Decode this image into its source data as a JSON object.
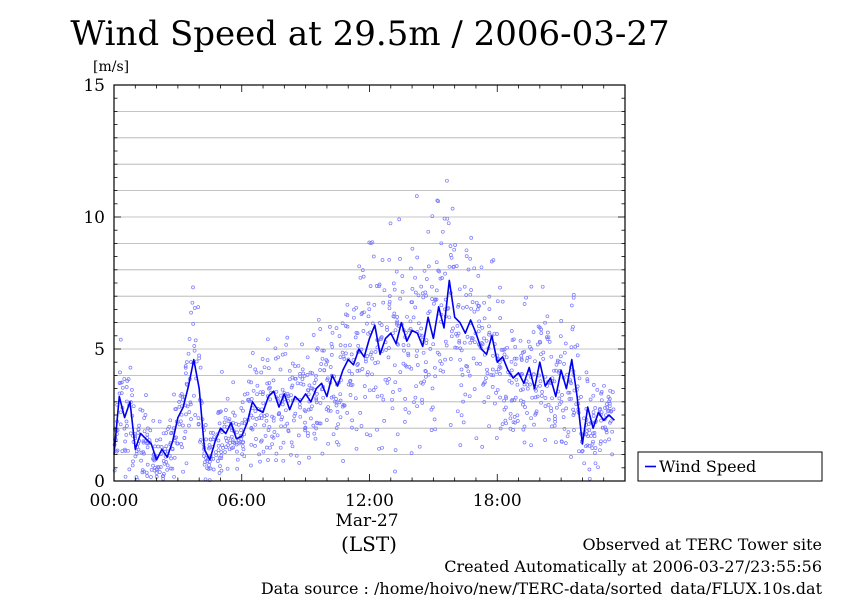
{
  "chart_data": {
    "type": "line",
    "title": "Wind Speed at 29.5m / 2006-03-27",
    "ylabel": "[m/s]",
    "xlabel": "(LST)",
    "x_date_label": "Mar-27",
    "x_range": [
      "00:00",
      "23:30"
    ],
    "ylim": [
      0,
      15
    ],
    "y_ticks": [
      "0",
      "5",
      "10",
      "15"
    ],
    "x_ticks": [
      "00:00",
      "06:00",
      "12:00",
      "18:00"
    ],
    "grid": true,
    "legend_position": "right",
    "series": [
      {
        "name": "Wind Speed",
        "color": "#0000ee",
        "scatter_color": "#7777ff",
        "x": [
          "00:00",
          "00:15",
          "00:30",
          "00:45",
          "01:00",
          "01:15",
          "01:30",
          "01:45",
          "02:00",
          "02:15",
          "02:30",
          "02:45",
          "03:00",
          "03:15",
          "03:30",
          "03:45",
          "04:00",
          "04:15",
          "04:30",
          "04:45",
          "05:00",
          "05:15",
          "05:30",
          "05:45",
          "06:00",
          "06:15",
          "06:30",
          "06:45",
          "07:00",
          "07:15",
          "07:30",
          "07:45",
          "08:00",
          "08:15",
          "08:30",
          "08:45",
          "09:00",
          "09:15",
          "09:30",
          "09:45",
          "10:00",
          "10:15",
          "10:30",
          "10:45",
          "11:00",
          "11:15",
          "11:30",
          "11:45",
          "12:00",
          "12:15",
          "12:30",
          "12:45",
          "13:00",
          "13:15",
          "13:30",
          "13:45",
          "14:00",
          "14:15",
          "14:30",
          "14:45",
          "15:00",
          "15:15",
          "15:30",
          "15:45",
          "16:00",
          "16:15",
          "16:30",
          "16:45",
          "17:00",
          "17:15",
          "17:30",
          "17:45",
          "18:00",
          "18:15",
          "18:30",
          "18:45",
          "19:00",
          "19:15",
          "19:30",
          "19:45",
          "20:00",
          "20:15",
          "20:30",
          "20:45",
          "21:00",
          "21:15",
          "21:30",
          "21:45",
          "22:00",
          "22:15",
          "22:30",
          "22:45",
          "23:00",
          "23:15",
          "23:30"
        ],
        "values": [
          1.0,
          3.2,
          2.4,
          3.0,
          1.2,
          1.8,
          1.6,
          1.4,
          0.8,
          1.2,
          0.9,
          1.5,
          2.4,
          2.8,
          3.6,
          4.6,
          3.5,
          1.2,
          0.8,
          1.5,
          2.0,
          1.8,
          2.2,
          1.6,
          1.7,
          2.2,
          3.0,
          2.7,
          2.6,
          3.2,
          3.4,
          2.8,
          3.3,
          2.7,
          3.2,
          3.0,
          3.3,
          3.0,
          3.5,
          3.7,
          3.2,
          4.0,
          3.6,
          4.2,
          4.6,
          4.4,
          5.0,
          4.7,
          5.4,
          5.9,
          4.8,
          5.4,
          5.6,
          5.2,
          6.0,
          5.3,
          5.7,
          5.6,
          5.1,
          6.2,
          5.4,
          6.6,
          5.8,
          7.6,
          6.2,
          6.0,
          5.6,
          6.1,
          5.6,
          5.0,
          4.8,
          5.5,
          4.5,
          4.7,
          4.2,
          3.9,
          4.1,
          3.7,
          4.3,
          3.5,
          4.5,
          3.6,
          3.9,
          3.2,
          4.2,
          3.5,
          4.6,
          3.2,
          1.4,
          2.8,
          2.0,
          2.6,
          2.3,
          2.5,
          2.3
        ]
      }
    ]
  },
  "legend": {
    "label": "Wind Speed"
  },
  "footer": {
    "line1": "Observed at TERC Tower site",
    "line2": "Created Automatically at 2006-03-27/23:55:56",
    "line3": "Data source : /home/hoivo/new/TERC-data/sorted_data/FLUX.10s.dat"
  }
}
